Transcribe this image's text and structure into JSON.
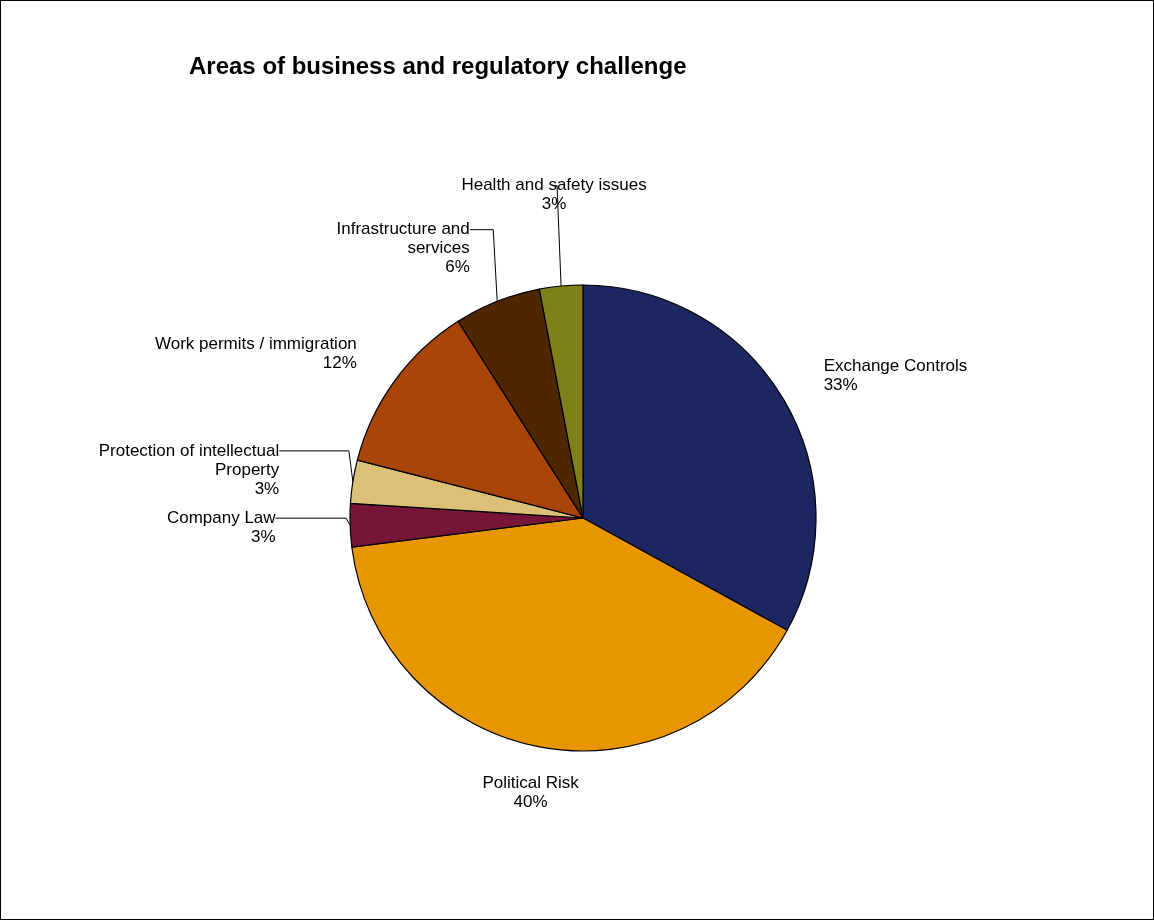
{
  "chart_data": {
    "type": "pie",
    "title": "Areas of business and regulatory challenge",
    "categories": [
      "Exchange Controls",
      "Political Risk",
      "Company Law",
      "Protection of intellectual Property",
      "Work permits / immigration",
      "Infrastructure and services",
      "Health and safety issues"
    ],
    "values": [
      33,
      40,
      3,
      3,
      12,
      6,
      3
    ],
    "value_labels": [
      "33%",
      "40%",
      "3%",
      "3%",
      "12%",
      "6%",
      "3%"
    ],
    "colors": [
      "#1c2660",
      "#e89600",
      "#771538",
      "#dcc078",
      "#a84406",
      "#4e2700",
      "#7f8019"
    ],
    "legend": false
  }
}
